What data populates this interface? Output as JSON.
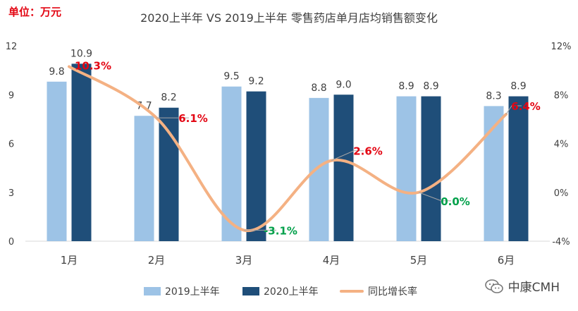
{
  "unit_label": "单位：万元",
  "watermark_text": "中康CMH",
  "colors": {
    "series_2019": "#9dc3e6",
    "series_2020": "#1f4e79",
    "growth_line": "#f4b183",
    "growth_positive": "#e30613",
    "growth_negative": "#00a04a",
    "axis_text": "#404040",
    "axis_line": "#d9d9d9",
    "leader_line": "#a6a6a6"
  },
  "chart_data": {
    "type": "bar",
    "title": "2020上半年 VS 2019上半年 零售药店单月店均销售额变化",
    "categories": [
      "1月",
      "2月",
      "3月",
      "4月",
      "5月",
      "6月"
    ],
    "series": [
      {
        "name": "2019上半年",
        "type": "bar",
        "axis": "left",
        "values": [
          9.8,
          7.7,
          9.5,
          8.8,
          8.9,
          8.3
        ],
        "labels": [
          "9.8",
          "7.7",
          "9.5",
          "8.8",
          "8.9",
          "8.3"
        ]
      },
      {
        "name": "2020上半年",
        "type": "bar",
        "axis": "left",
        "values": [
          10.9,
          8.2,
          9.2,
          9.0,
          8.9,
          8.9
        ],
        "labels": [
          "10.9",
          "8.2",
          "9.2",
          "9.0",
          "8.9",
          "8.9"
        ]
      },
      {
        "name": "同比增长率",
        "type": "line",
        "axis": "right",
        "values": [
          10.3,
          6.1,
          -3.1,
          2.6,
          0.0,
          6.4
        ],
        "labels": [
          "10.3%",
          "6.1%",
          "-3.1%",
          "2.6%",
          "0.0%",
          "6.4%"
        ]
      }
    ],
    "y_left": {
      "min": 0,
      "max": 12,
      "ticks": [
        0,
        3,
        6,
        9,
        12
      ],
      "tick_labels": [
        "0",
        "3",
        "6",
        "9",
        "12"
      ]
    },
    "y_right": {
      "min": -4,
      "max": 12,
      "ticks": [
        -4,
        0,
        4,
        8,
        12
      ],
      "tick_labels": [
        "-4%",
        "0%",
        "4%",
        "8%",
        "12%"
      ]
    },
    "grid": false,
    "legend_position": "bottom"
  }
}
